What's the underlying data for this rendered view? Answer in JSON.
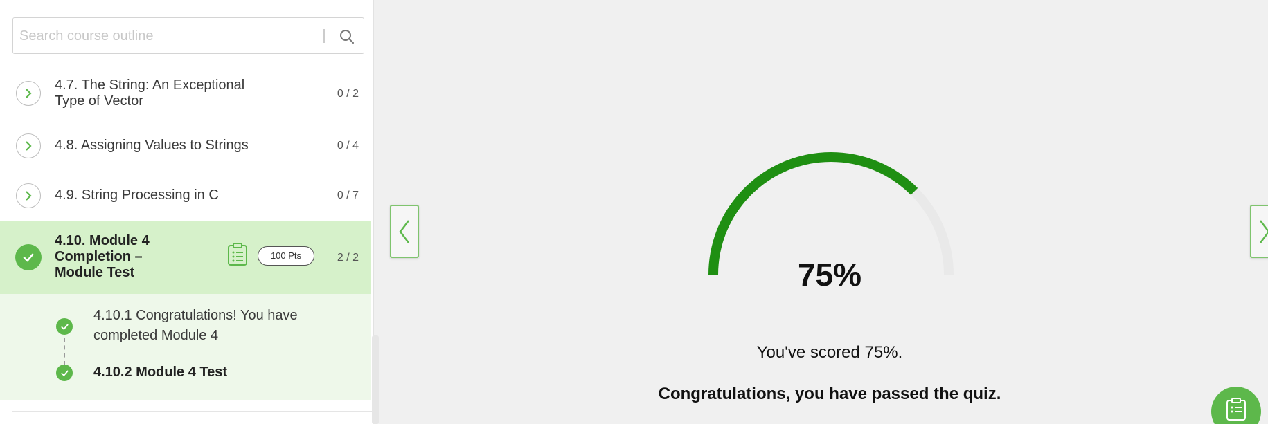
{
  "search": {
    "placeholder": "Search course outline"
  },
  "outline": [
    {
      "label": "4.7. The String: An Exceptional Type of Vector",
      "count": "0 / 2"
    },
    {
      "label": "4.8. Assigning Values to Strings",
      "count": "0 / 4"
    },
    {
      "label": "4.9. String Processing in C",
      "count": "0 / 7"
    }
  ],
  "active": {
    "label": "4.10. Module 4 Completion – Module Test",
    "points": "100 Pts",
    "count": "2 / 2",
    "subitems": [
      {
        "label": "4.10.1 Congratulations! You have completed Module 4"
      },
      {
        "label": "4.10.2 Module 4 Test"
      }
    ]
  },
  "result": {
    "score_pct": "75%",
    "score_fraction": 0.75,
    "score_text": "You've scored 75%.",
    "pass_text": "Congratulations, you have passed the quiz."
  },
  "colors": {
    "accent": "#5db84b",
    "gauge": "#1f8f12",
    "gauge_track": "#e9e9e9",
    "active_row": "#d6f1ca"
  }
}
